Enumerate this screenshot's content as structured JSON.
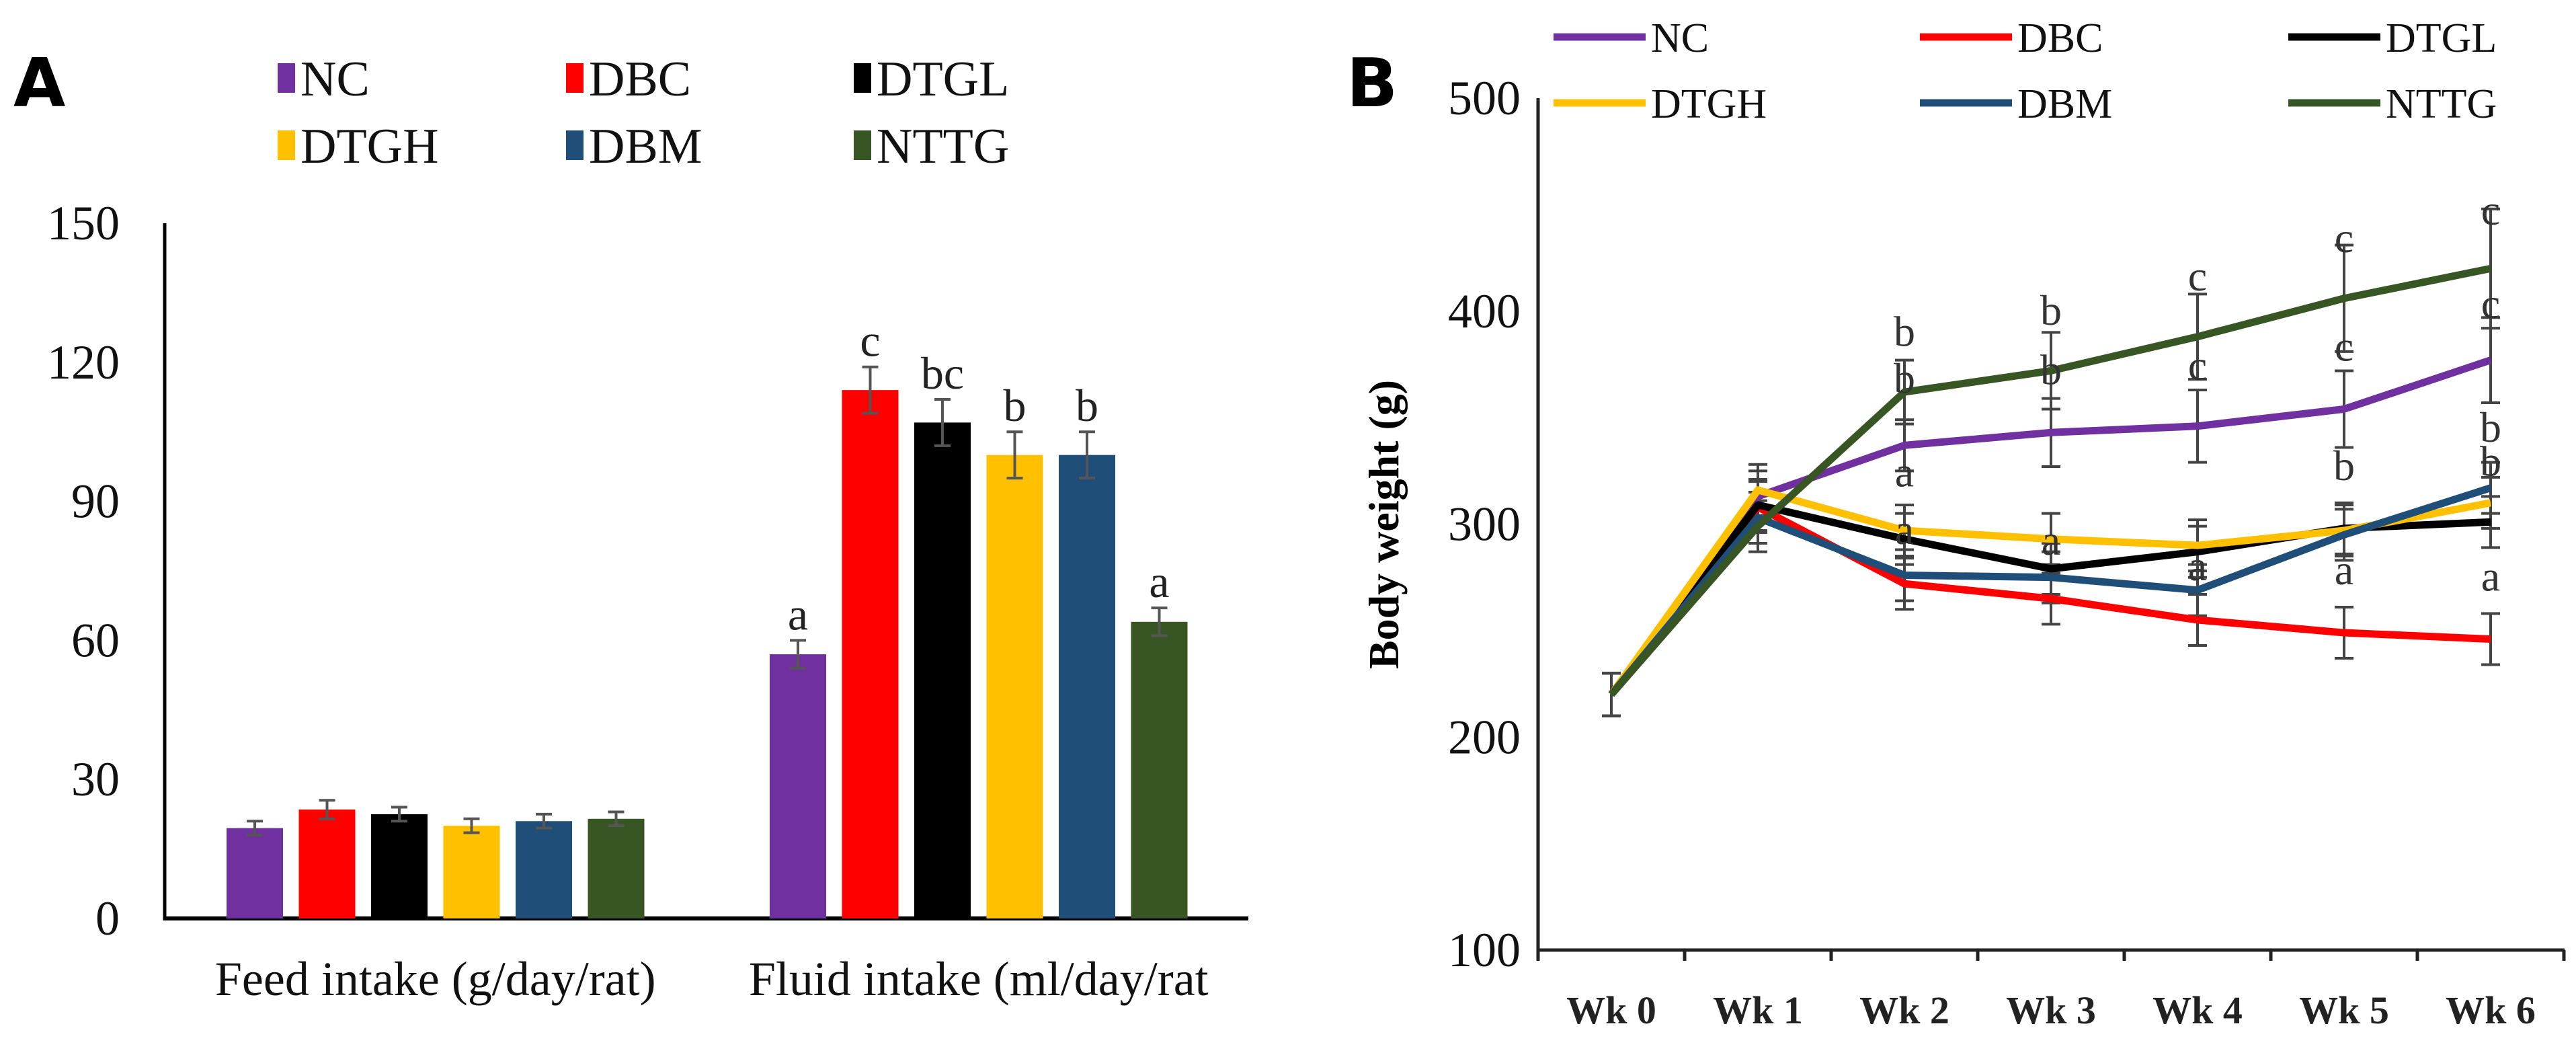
{
  "colors": {
    "NC": "#7030A0",
    "DBC": "#FF0000",
    "DTGL": "#000000",
    "DTGH": "#FFC000",
    "DBM": "#1F4E79",
    "NTTG": "#375623"
  },
  "chart_data": [
    {
      "panel": "A",
      "type": "bar",
      "legend": [
        "NC",
        "DBC",
        "DTGL",
        "DTGH",
        "DBM",
        "NTTG"
      ],
      "legend_placement": "top",
      "categories": [
        "Feed intake (g/day/rat)",
        "Fluid intake (ml/day/rat"
      ],
      "ylim": [
        0,
        150
      ],
      "yticks": [
        0,
        30,
        60,
        90,
        120,
        150
      ],
      "series": [
        {
          "name": "NC",
          "values": [
            19.5,
            57
          ],
          "errors": [
            1.5,
            3
          ],
          "labels": [
            "",
            "a"
          ]
        },
        {
          "name": "DBC",
          "values": [
            23.5,
            114
          ],
          "errors": [
            2,
            5
          ],
          "labels": [
            "",
            "c"
          ]
        },
        {
          "name": "DTGL",
          "values": [
            22.5,
            107
          ],
          "errors": [
            1.5,
            5
          ],
          "labels": [
            "",
            "bc"
          ]
        },
        {
          "name": "DTGH",
          "values": [
            20,
            100
          ],
          "errors": [
            1.5,
            5
          ],
          "labels": [
            "",
            "b"
          ]
        },
        {
          "name": "DBM",
          "values": [
            21,
            100
          ],
          "errors": [
            1.5,
            5
          ],
          "labels": [
            "",
            "b"
          ]
        },
        {
          "name": "NTTG",
          "values": [
            21.5,
            64
          ],
          "errors": [
            1.5,
            3
          ],
          "labels": [
            "",
            "a"
          ]
        }
      ]
    },
    {
      "panel": "B",
      "type": "line",
      "ylabel": "Body weight (g)",
      "x": [
        "Wk 0",
        "Wk 1",
        "Wk 2",
        "Wk 3",
        "Wk 4",
        "Wk 5",
        "Wk 6"
      ],
      "ylim": [
        100,
        500
      ],
      "yticks": [
        100,
        200,
        300,
        400,
        500
      ],
      "legend_placement": "top",
      "series": [
        {
          "name": "NC",
          "values": [
            220,
            313,
            337,
            343,
            346,
            354,
            377
          ],
          "errors": [
            10,
            12,
            12,
            16,
            17,
            18,
            20
          ]
        },
        {
          "name": "DBC",
          "values": [
            220,
            308,
            272,
            265,
            255,
            249,
            246
          ],
          "errors": [
            10,
            12,
            12,
            12,
            12,
            12,
            12
          ]
        },
        {
          "name": "DTGL",
          "values": [
            220,
            309,
            293,
            279,
            287,
            298,
            301
          ],
          "errors": [
            10,
            12,
            12,
            12,
            12,
            12,
            12
          ]
        },
        {
          "name": "DTGH",
          "values": [
            220,
            316,
            297,
            293,
            290,
            297,
            310
          ],
          "errors": [
            10,
            12,
            12,
            12,
            12,
            12,
            12
          ]
        },
        {
          "name": "DBM",
          "values": [
            220,
            303,
            276,
            275,
            269,
            295,
            317
          ],
          "errors": [
            10,
            12,
            12,
            12,
            12,
            12,
            12
          ]
        },
        {
          "name": "NTTG",
          "values": [
            220,
            299,
            362,
            372,
            388,
            406,
            420
          ],
          "errors": [
            10,
            12,
            15,
            18,
            20,
            25,
            28
          ]
        }
      ],
      "annotations": [
        {
          "x": "Wk 2",
          "y": 390,
          "text": "b"
        },
        {
          "x": "Wk 2",
          "y": 368,
          "text": "b"
        },
        {
          "x": "Wk 2",
          "y": 324,
          "text": "a"
        },
        {
          "x": "Wk 2",
          "y": 297,
          "text": "a"
        },
        {
          "x": "Wk 3",
          "y": 400,
          "text": "b"
        },
        {
          "x": "Wk 3",
          "y": 372,
          "text": "b"
        },
        {
          "x": "Wk 3",
          "y": 292,
          "text": "a"
        },
        {
          "x": "Wk 4",
          "y": 416,
          "text": "c"
        },
        {
          "x": "Wk 4",
          "y": 374,
          "text": "c"
        },
        {
          "x": "Wk 4",
          "y": 280,
          "text": "a"
        },
        {
          "x": "Wk 5",
          "y": 434,
          "text": "c"
        },
        {
          "x": "Wk 5",
          "y": 383,
          "text": "c"
        },
        {
          "x": "Wk 5",
          "y": 327,
          "text": "b"
        },
        {
          "x": "Wk 5",
          "y": 278,
          "text": "a"
        },
        {
          "x": "Wk 6",
          "y": 447,
          "text": "c"
        },
        {
          "x": "Wk 6",
          "y": 403,
          "text": "c"
        },
        {
          "x": "Wk 6",
          "y": 345,
          "text": "b"
        },
        {
          "x": "Wk 6",
          "y": 329,
          "text": "b"
        },
        {
          "x": "Wk 6",
          "y": 275,
          "text": "a"
        }
      ]
    }
  ],
  "panels": {
    "a": "A",
    "b": "B"
  }
}
